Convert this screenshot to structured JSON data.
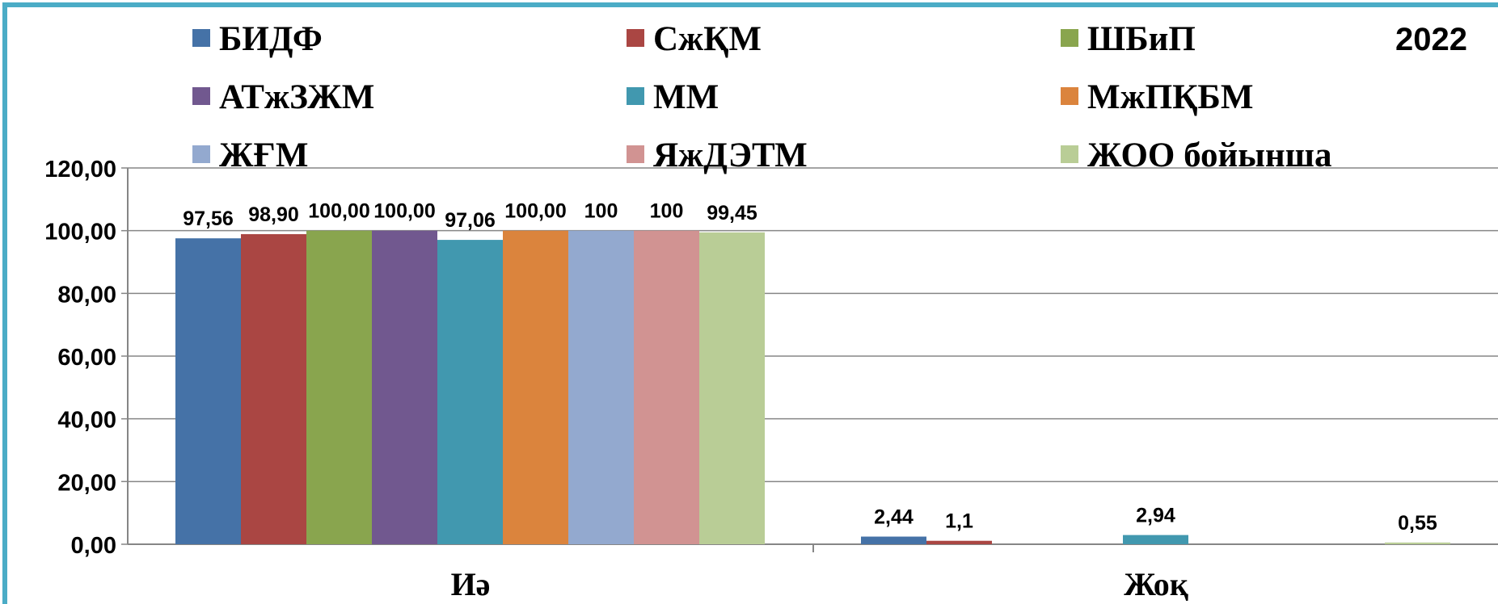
{
  "chart_data": {
    "type": "bar",
    "title": "",
    "xlabel": "",
    "ylabel": "",
    "ylim": [
      0,
      120
    ],
    "yticks": [
      "0,00",
      "20,00",
      "40,00",
      "60,00",
      "80,00",
      "100,00",
      "120,00"
    ],
    "grid": true,
    "legend_position": "top",
    "annotation": "2022",
    "categories": [
      "Иә",
      "Жоқ"
    ],
    "series": [
      {
        "name": "БИДФ",
        "color": "#4572A7",
        "values": [
          97.56,
          2.44
        ],
        "labels": [
          "97,56",
          "2,44"
        ]
      },
      {
        "name": "СжҚМ",
        "color": "#AA4643",
        "values": [
          98.9,
          1.1
        ],
        "labels": [
          "98,90",
          "1,1"
        ]
      },
      {
        "name": "ШБиП",
        "color": "#89A54E",
        "values": [
          100,
          0
        ],
        "labels": [
          "100,00",
          ""
        ]
      },
      {
        "name": "АТжЗЖМ",
        "color": "#71588F",
        "values": [
          100,
          0
        ],
        "labels": [
          "100,00",
          ""
        ]
      },
      {
        "name": "ММ",
        "color": "#4198AF",
        "values": [
          97.06,
          2.94
        ],
        "labels": [
          "97,06",
          "2,94"
        ]
      },
      {
        "name": "МжПҚБМ",
        "color": "#DB843D",
        "values": [
          100,
          0
        ],
        "labels": [
          "100,00",
          ""
        ]
      },
      {
        "name": "ЖҒМ",
        "color": "#93A9CF",
        "values": [
          100,
          0
        ],
        "labels": [
          "100",
          ""
        ]
      },
      {
        "name": "ЯжДЭТМ",
        "color": "#D19392",
        "values": [
          100,
          0
        ],
        "labels": [
          "100",
          ""
        ]
      },
      {
        "name": "ЖОО бойынша",
        "color": "#B9CD96",
        "values": [
          99.45,
          0.55
        ],
        "labels": [
          "99,45",
          "0,55"
        ]
      }
    ]
  }
}
